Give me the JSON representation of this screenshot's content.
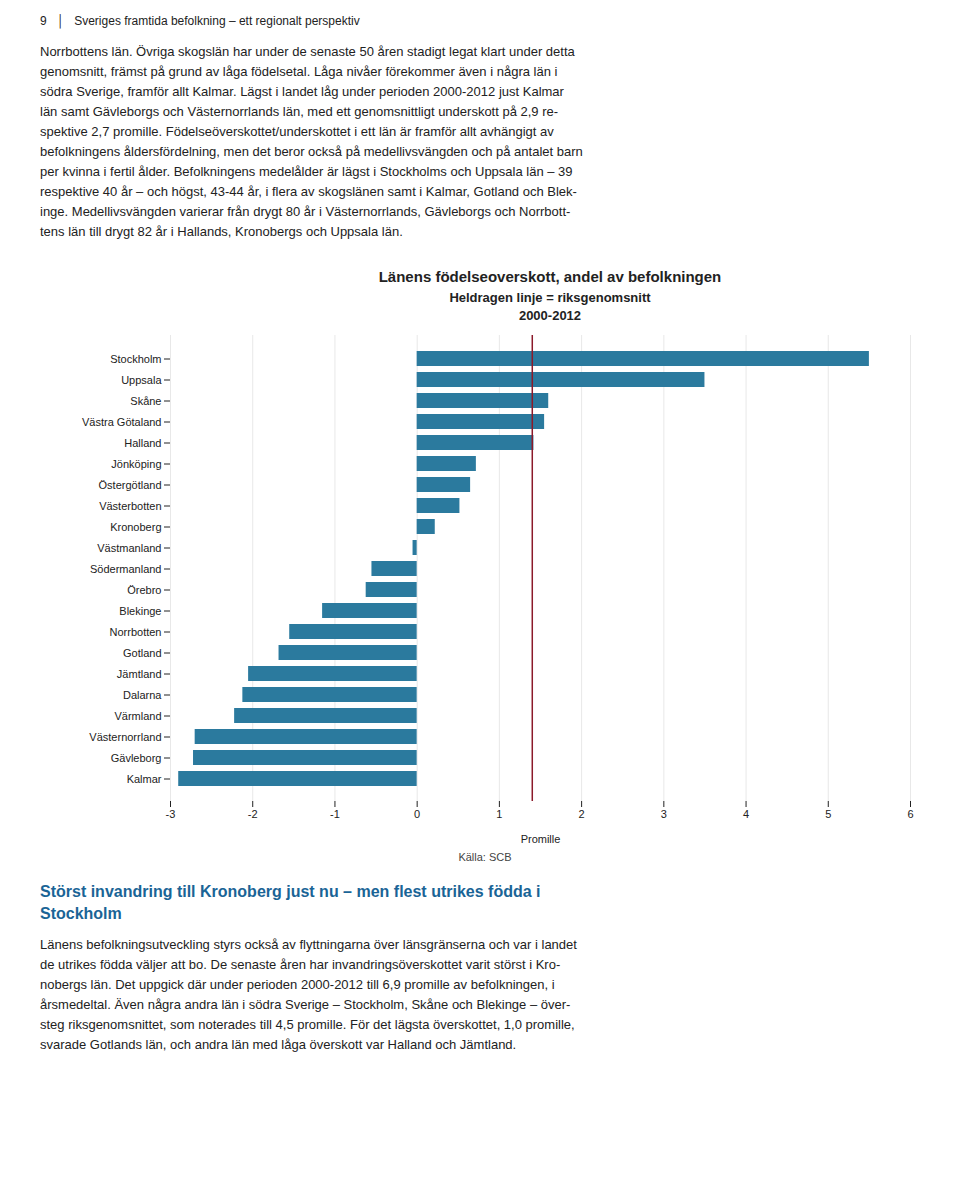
{
  "chart_data": {
    "type": "bar",
    "orientation": "horizontal",
    "header": [
      "9",
      "│",
      "Sveriges framtida befolkning – ett regionalt perspektiv"
    ],
    "text_above": "Norrbottens län. Övriga skogslän har under de senaste 50 åren stadigt legat klart under detta\ngenomsnitt, främst på grund av låga födelsetal. Låga nivåer förekommer även i några län i\nsödra Sverige, framför allt Kalmar. Lägst i landet låg under perioden 2000-2012 just Kalmar\nlän samt Gävleborgs och Västernorrlands län, med ett genomsnittligt underskott på 2,9 re-\nspektive 2,7 promille. Födelseöverskottet/underskottet i ett län är framför allt avhängigt av\nbefolkningens åldersfördelning, men det beror också på medellivsvängden och på antalet barn\nper kvinna i fertil ålder. Befolkningens medelålder är lägst i Stockholms och Uppsala län – 39\nrespektive 40 år – och högst, 43-44 år, i flera av skogslänen samt i Kalmar, Gotland och Blek-\ninge. Medellivsvängden varierar från drygt 80 år i Västernorrlands, Gävleborgs och Norrbott-\ntens län till drygt 82 år i Hallands, Kronobergs och Uppsala län.",
    "title": "Länens födelseoverskott, andel av befolkningen",
    "subtitle": "Heldragen linje = riksgenomsnitt\n2000-2012",
    "xlabel": "Promille",
    "source": "Källa: SCB",
    "footer_title": "Störst invandring till Kronoberg just nu – men flest utrikes födda i\nStockholm",
    "footer_text": "Länens befolkningsutveckling styrs också av flyttningarna över länsgränserna och var i landet\nde utrikes födda väljer att bo. De senaste åren har invandringsöverskottet varit störst i Kro-\nnobergs län. Det uppgick där under perioden 2000-2012 till 6,9 promille av befolkningen, i\nårsmedeltal. Även några andra län i södra Sverige – Stockholm, Skåne och Blekinge – över-\nsteg riksgenomsnittet, som noterades till 4,5 promille. För det lägsta överskottet, 1,0 promille,\nsvarade Gotlands län, och andra län med låga överskott var Halland och Jämtland.",
    "categories": [
      "Stockholm",
      "Uppsala",
      "Skåne",
      "Västra Götaland",
      "Halland",
      "Jönköping",
      "Östergötland",
      "Västerbotten",
      "Kronoberg",
      "Västmanland",
      "Södermanland",
      "Örebro",
      "Blekinge",
      "Norrbotten",
      "Gotland",
      "Jämtland",
      "Dalarna",
      "Värmland",
      "Västernorrland",
      "Gävleborg",
      "Kalmar"
    ],
    "values": [
      5.5,
      3.5,
      1.6,
      1.55,
      1.42,
      0.72,
      0.65,
      0.52,
      0.22,
      -0.05,
      -0.55,
      -0.62,
      -1.15,
      -1.55,
      -1.68,
      -2.05,
      -2.12,
      -2.22,
      -2.7,
      -2.72,
      -2.9
    ],
    "color": "#2b7a9e",
    "reference_line": {
      "value": 1.4,
      "color": "#8b1a2a"
    },
    "xlim": [
      -3,
      6
    ],
    "xticks": [
      -3,
      -2,
      -1,
      0,
      1,
      2,
      3,
      4,
      5,
      6
    ],
    "grid": true
  }
}
